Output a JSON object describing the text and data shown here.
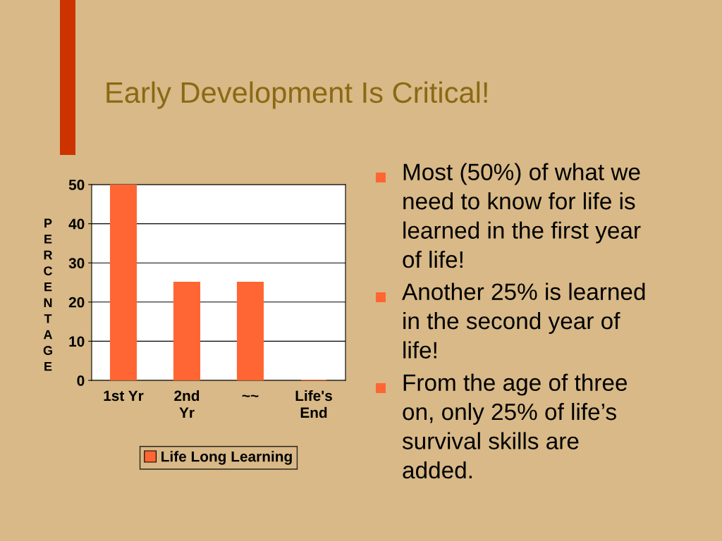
{
  "chart_data": {
    "type": "bar",
    "title": "Early Development Is Critical!",
    "ylabel": "PERCENTAGE",
    "categories": [
      "1st Yr",
      "2nd\nYr",
      "~~",
      "Life's\nEnd"
    ],
    "series": [
      {
        "name": "Life Long Learning",
        "color": "#ff6633",
        "values": [
          50,
          25,
          25,
          0
        ]
      }
    ],
    "ylim": [
      0,
      50
    ],
    "yticks": [
      0,
      10,
      20,
      30,
      40,
      50
    ],
    "grid": "y",
    "legend": "bottom",
    "annotations": [
      "Most (50%) of what we\nneed to know for life is\nlearned in the first year\nof life!",
      "Another 25% is learned\nin the second year of\nlife!",
      "From the age of three\non, only 25% of life’s\nsurvival skills are\nadded."
    ]
  }
}
